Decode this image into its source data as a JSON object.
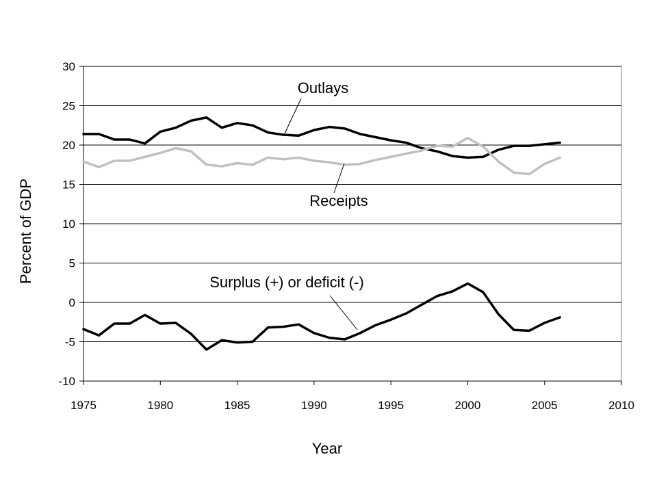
{
  "chart_data": {
    "type": "line",
    "title": "",
    "xlabel": "Year",
    "ylabel": "Percent of GDP",
    "xlim": [
      1975,
      2010
    ],
    "ylim": [
      -10,
      30
    ],
    "x_ticks": [
      1975,
      1980,
      1985,
      1990,
      1995,
      2000,
      2005,
      2010
    ],
    "y_ticks": [
      -10,
      -5,
      0,
      5,
      10,
      15,
      20,
      25,
      30
    ],
    "grid": "horizontal",
    "legend": "none",
    "x": [
      1975,
      1976,
      1977,
      1978,
      1979,
      1980,
      1981,
      1982,
      1983,
      1984,
      1985,
      1986,
      1987,
      1988,
      1989,
      1990,
      1991,
      1992,
      1993,
      1994,
      1995,
      1996,
      1997,
      1998,
      1999,
      2000,
      2001,
      2002,
      2003,
      2004,
      2005,
      2006
    ],
    "series": [
      {
        "name": "Outlays",
        "color": "#000000",
        "values": [
          21.4,
          21.4,
          20.7,
          20.7,
          20.2,
          21.7,
          22.2,
          23.1,
          23.5,
          22.2,
          22.8,
          22.5,
          21.6,
          21.3,
          21.2,
          21.9,
          22.3,
          22.1,
          21.4,
          21.0,
          20.6,
          20.3,
          19.6,
          19.2,
          18.6,
          18.4,
          18.5,
          19.4,
          19.9,
          19.9,
          20.1,
          20.3
        ]
      },
      {
        "name": "Receipts",
        "color": "#c0c0c0",
        "values": [
          17.9,
          17.2,
          18.0,
          18.0,
          18.5,
          19.0,
          19.6,
          19.2,
          17.5,
          17.3,
          17.7,
          17.5,
          18.4,
          18.2,
          18.4,
          18.0,
          17.8,
          17.5,
          17.6,
          18.1,
          18.5,
          18.9,
          19.3,
          19.9,
          19.8,
          20.9,
          19.8,
          17.9,
          16.5,
          16.3,
          17.6,
          18.4
        ]
      },
      {
        "name": "Surplus (+) or deficit (-)",
        "color": "#000000",
        "values": [
          -3.4,
          -4.2,
          -2.7,
          -2.7,
          -1.6,
          -2.7,
          -2.6,
          -4.0,
          -6.0,
          -4.8,
          -5.1,
          -5.0,
          -3.2,
          -3.1,
          -2.8,
          -3.9,
          -4.5,
          -4.7,
          -3.9,
          -2.9,
          -2.2,
          -1.4,
          -0.3,
          0.8,
          1.4,
          2.4,
          1.3,
          -1.5,
          -3.5,
          -3.6,
          -2.6,
          -1.9
        ]
      }
    ],
    "annotations": [
      {
        "text": "Outlays",
        "series": "Outlays"
      },
      {
        "text": "Receipts",
        "series": "Receipts"
      },
      {
        "text": "Surplus (+) or deficit (-)",
        "series": "Surplus (+) or deficit (-)"
      }
    ]
  }
}
